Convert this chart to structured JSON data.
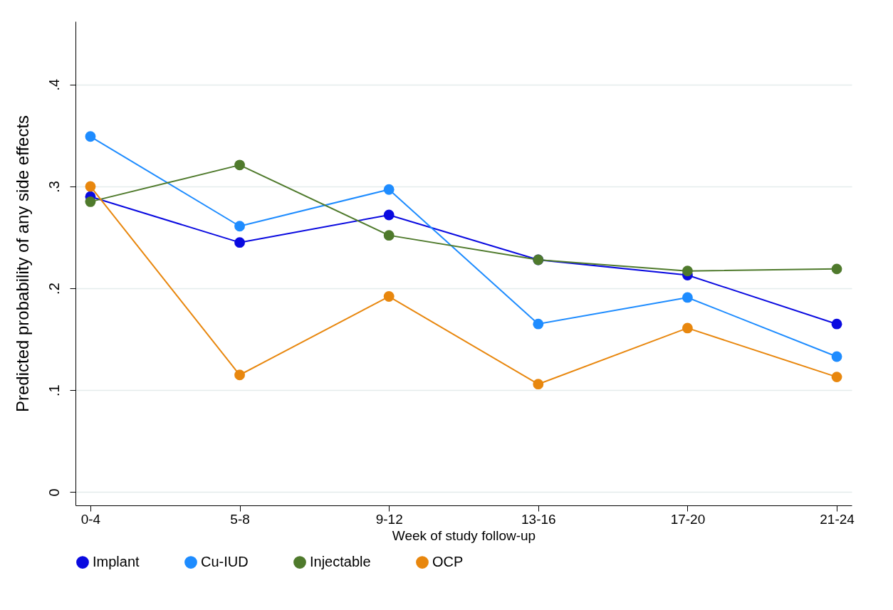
{
  "chart_data": {
    "type": "line",
    "xlabel": "Week of study follow-up",
    "ylabel": "Predicted probability of any side effects",
    "categories": [
      "0-4",
      "5-8",
      "9-12",
      "13-16",
      "17-20",
      "21-24"
    ],
    "series": [
      {
        "name": "Implant",
        "color": "#0a0ae0",
        "values": [
          0.29,
          0.245,
          0.272,
          0.228,
          0.213,
          0.165
        ]
      },
      {
        "name": "Cu-IUD",
        "color": "#1e8cff",
        "values": [
          0.349,
          0.261,
          0.297,
          0.165,
          0.191,
          0.133
        ]
      },
      {
        "name": "Injectable",
        "color": "#4f7a2c",
        "values": [
          0.285,
          0.321,
          0.252,
          0.228,
          0.217,
          0.219
        ]
      },
      {
        "name": "OCP",
        "color": "#e8870e",
        "values": [
          0.3,
          0.115,
          0.192,
          0.106,
          0.161,
          0.113
        ]
      }
    ],
    "ylim": [
      -0.013,
      0.462
    ],
    "yticks": [
      0,
      {
        "value": 0.1,
        "label": ".1"
      },
      {
        "value": 0.2,
        "label": ".2"
      },
      {
        "value": 0.3,
        "label": ".3"
      },
      {
        "value": 0.4,
        "label": ".4"
      }
    ],
    "grid": "y",
    "legend": "bottom",
    "marker": "circle",
    "line_style": "solid"
  }
}
